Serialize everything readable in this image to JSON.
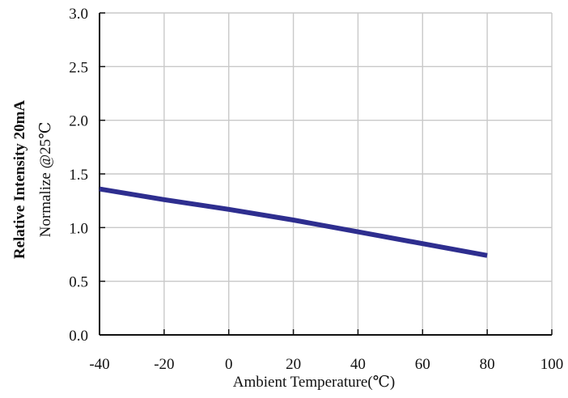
{
  "chart_data": {
    "type": "line",
    "xlabel": "Ambient Temperature(℃)",
    "ylabel_line1": "Relative Intensity 20mA",
    "ylabel_line2": "Normalize @25℃",
    "xlim": [
      -40,
      100
    ],
    "ylim": [
      0.0,
      3.0
    ],
    "x_ticks": [
      "-40",
      "-20",
      "0",
      "20",
      "40",
      "60",
      "80",
      "100"
    ],
    "y_ticks": [
      "0.0",
      "0.5",
      "1.0",
      "1.5",
      "2.0",
      "2.5",
      "3.0"
    ],
    "grid": true,
    "series": [
      {
        "x": [
          -40,
          -20,
          0,
          20,
          40,
          60,
          80
        ],
        "y": [
          1.36,
          1.26,
          1.17,
          1.07,
          0.96,
          0.85,
          0.74
        ],
        "color": "#2e2e8f"
      }
    ]
  }
}
